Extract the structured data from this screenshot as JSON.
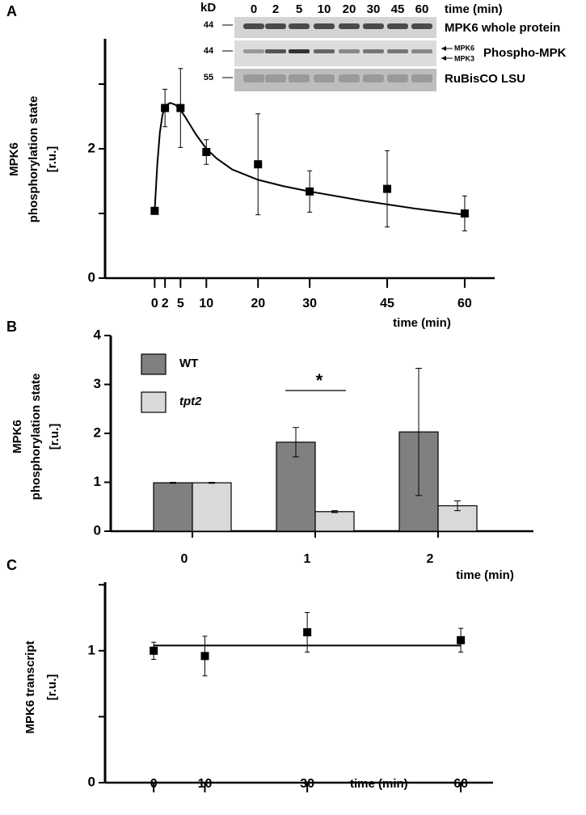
{
  "blot": {
    "kd": "kD",
    "lanes": [
      "0",
      "2",
      "5",
      "10",
      "20",
      "30",
      "45",
      "60"
    ],
    "time_label": "time (min)",
    "markers": [
      "44",
      "44",
      "55"
    ],
    "whole": "MPK6 whole protein",
    "mpk6": "MPK6",
    "mpk3": "MPK3",
    "phospho": "Phospho-MPK",
    "rubisco": "RuBisCO LSU"
  },
  "chart_data": [
    {
      "type": "scatter",
      "label": "A",
      "ylabel": [
        "MPK6",
        "phosphorylation state",
        "[r.u.]"
      ],
      "xlabel": "time (min)",
      "color": "#000000",
      "x": [
        0,
        2,
        5,
        10,
        20,
        30,
        45,
        60
      ],
      "values": [
        1.04,
        2.63,
        2.63,
        1.95,
        1.76,
        1.34,
        1.38,
        1.0
      ],
      "errors": [
        0,
        0.29,
        0.61,
        0.19,
        0.78,
        0.32,
        0.59,
        0.27
      ],
      "fit": {
        "x": [
          0,
          0.5,
          1,
          1.5,
          2,
          3,
          4,
          5,
          6,
          7,
          8,
          10,
          12,
          15,
          20,
          25,
          30,
          40,
          50,
          60
        ],
        "values": [
          1.04,
          1.75,
          2.25,
          2.52,
          2.66,
          2.71,
          2.68,
          2.6,
          2.48,
          2.35,
          2.22,
          2.0,
          1.85,
          1.68,
          1.52,
          1.42,
          1.34,
          1.2,
          1.08,
          0.98
        ]
      },
      "xlim": [
        -9.6,
        65.8
      ],
      "ylim": [
        0,
        3.7
      ],
      "xticks": [
        0,
        2,
        5,
        10,
        20,
        30,
        45,
        60
      ],
      "yticks": [
        0,
        2
      ],
      "yminorticks": [
        1,
        3
      ]
    },
    {
      "type": "bar",
      "label": "B",
      "ylabel": [
        "MPK6",
        "phosphorylation state",
        "[r.u.]"
      ],
      "xlabel": "time (min)",
      "categories": [
        "0",
        "1",
        "2"
      ],
      "series": [
        {
          "name": "WT",
          "color": "#808080",
          "values": [
            0.99,
            1.82,
            2.03
          ],
          "errors": [
            0.01,
            0.3,
            1.3
          ]
        },
        {
          "name": "tpt2",
          "color": "#d9d9d9",
          "values": [
            0.99,
            0.4,
            0.52
          ],
          "errors": [
            0.01,
            0.02,
            0.1
          ]
        }
      ],
      "annotation": "*",
      "ylim": [
        0,
        4
      ],
      "yticks": [
        0,
        1,
        2,
        3,
        4
      ]
    },
    {
      "type": "scatter",
      "label": "C",
      "ylabel": [
        "MPK6 transcript",
        "[r.u.]"
      ],
      "xlabel": "time (min)",
      "color": "#000000",
      "x": [
        0,
        10,
        30,
        60
      ],
      "values": [
        1.0,
        0.96,
        1.14,
        1.08
      ],
      "errors": [
        0.065,
        0.15,
        0.15,
        0.09
      ],
      "fit": {
        "x": [
          0,
          60
        ],
        "values": [
          1.04,
          1.04
        ]
      },
      "xlim": [
        -9.5,
        66.3
      ],
      "ylim": [
        0,
        1.52
      ],
      "xticks": [
        0,
        10,
        30,
        60
      ],
      "yticks": [
        0,
        1
      ],
      "yminorticks": [
        0.5,
        1.5
      ]
    }
  ]
}
